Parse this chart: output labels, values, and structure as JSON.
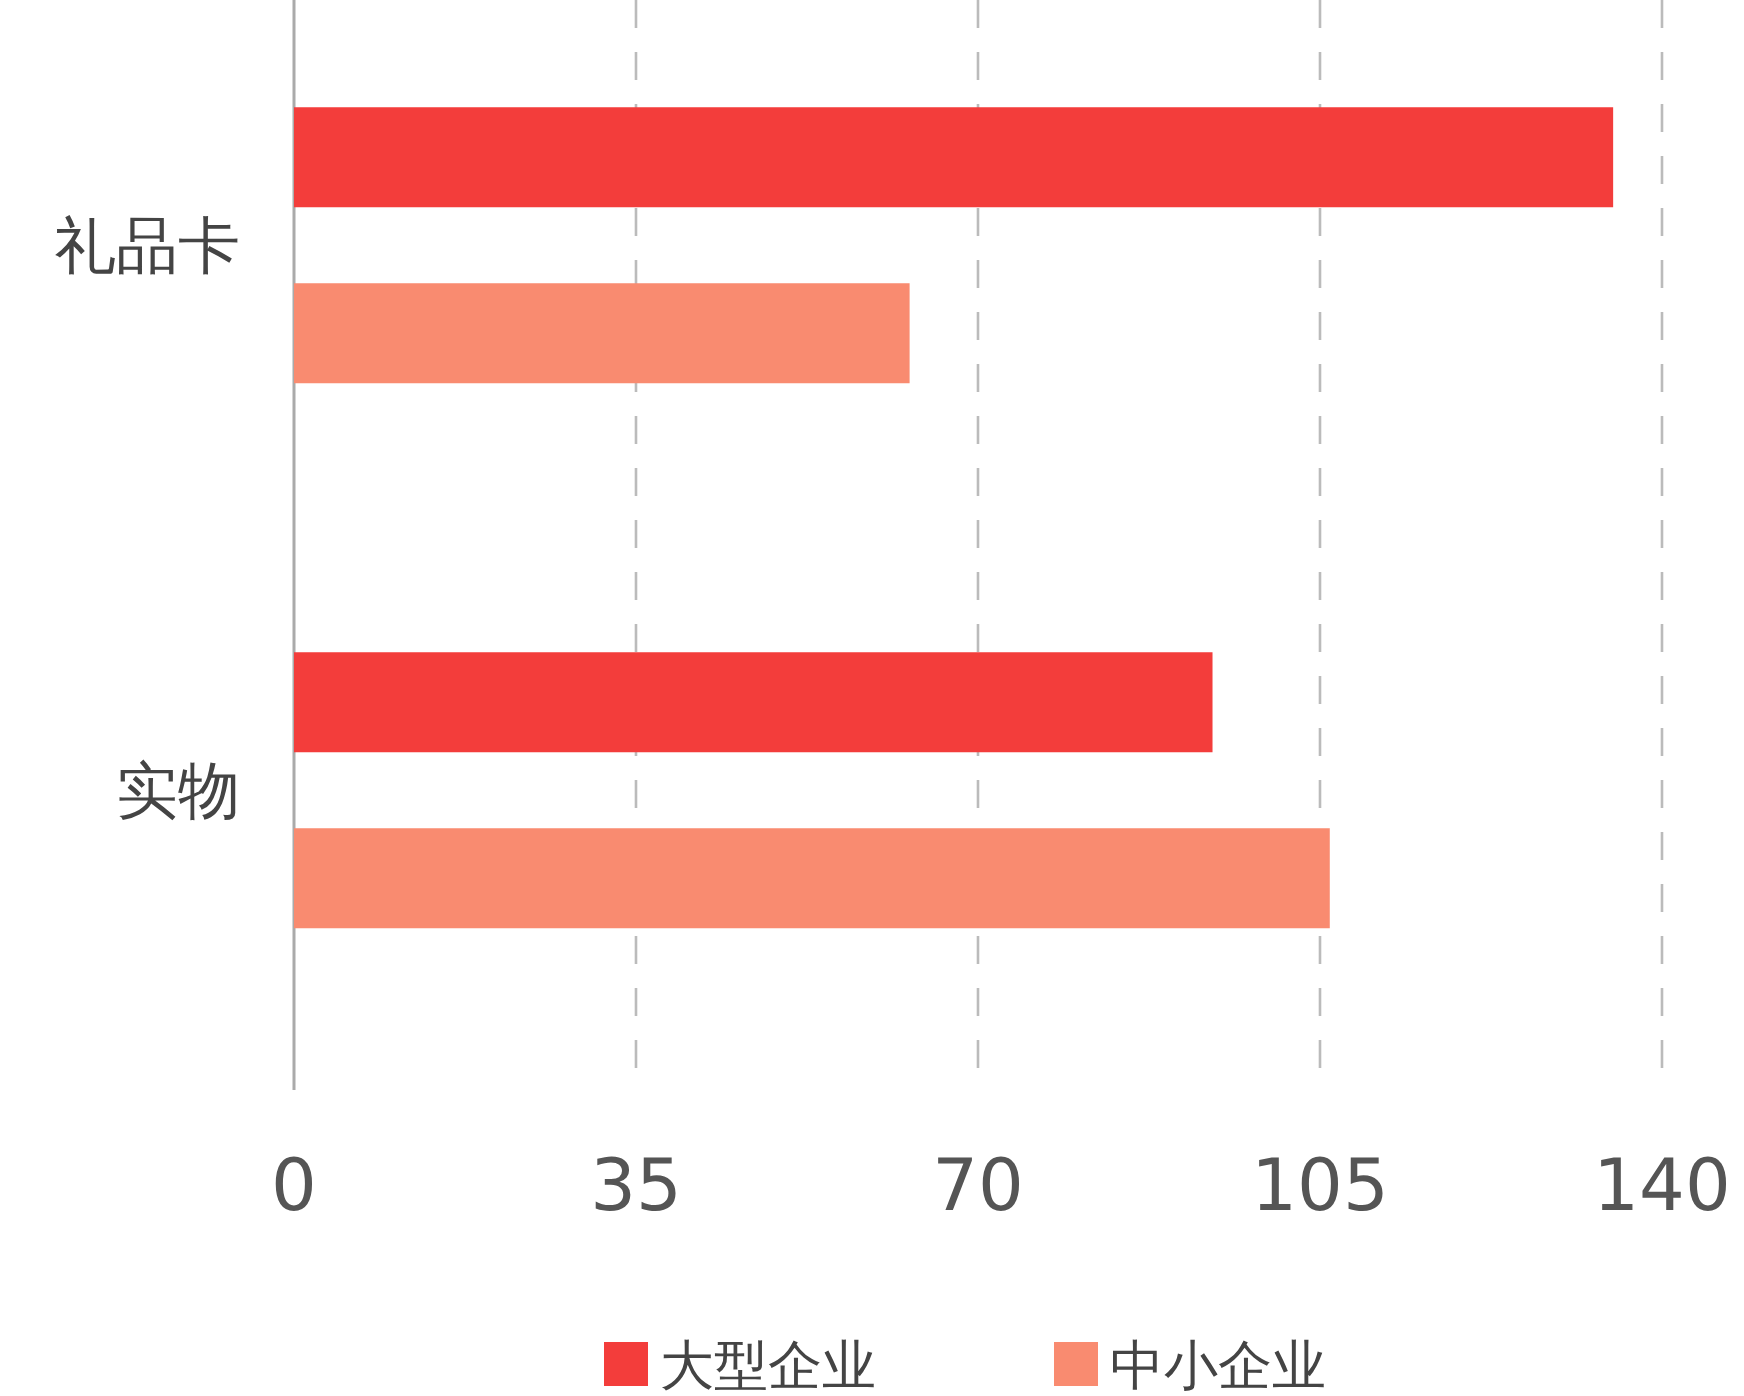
{
  "chart_data": {
    "type": "bar",
    "orientation": "horizontal",
    "categories": [
      "礼品卡",
      "实物"
    ],
    "series": [
      {
        "name": "大型企业",
        "color": "#f33d3b",
        "values": [
          135,
          94
        ]
      },
      {
        "name": "中小企业",
        "color": "#f98b70",
        "values": [
          63,
          106
        ]
      }
    ],
    "xlim": [
      0,
      140
    ],
    "xticks": [
      0,
      35,
      70,
      105,
      140
    ],
    "grid": "x",
    "legend": "bottom"
  }
}
